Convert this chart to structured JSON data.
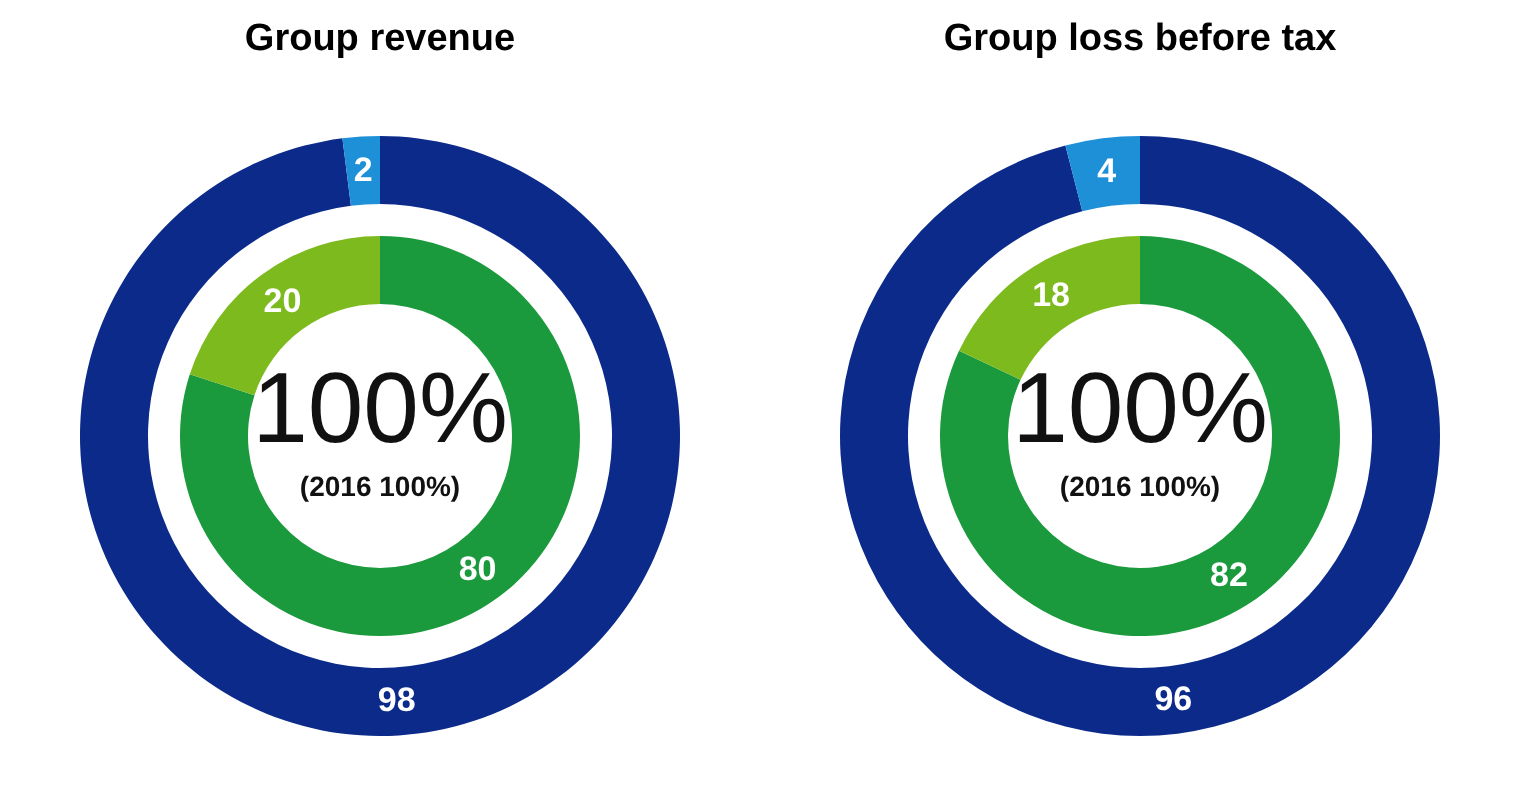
{
  "chart_data": [
    {
      "type": "donut",
      "title": "Group revenue",
      "categories": [
        null,
        null
      ],
      "data_labels": true,
      "series": [
        {
          "values": [
            80,
            20
          ],
          "colors": [
            "#1a9a3c",
            "#7dba1e"
          ]
        },
        {
          "values": [
            98,
            2
          ],
          "colors": [
            "#0b2a8a",
            "#1e90d8"
          ]
        }
      ],
      "annotations": [
        "100%",
        "(2016 100%)"
      ]
    },
    {
      "type": "donut",
      "title": "Group loss before tax",
      "categories": [
        null,
        null
      ],
      "data_labels": true,
      "series": [
        {
          "values": [
            82,
            18
          ],
          "colors": [
            "#1a9a3c",
            "#7dba1e"
          ]
        },
        {
          "values": [
            96,
            4
          ],
          "colors": [
            "#0b2a8a",
            "#1e90d8"
          ]
        }
      ],
      "annotations": [
        "100%",
        "(2016 100%)"
      ]
    }
  ]
}
